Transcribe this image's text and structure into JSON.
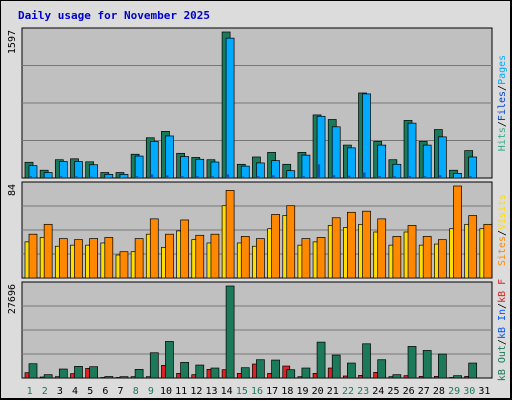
{
  "title": "Daily usage for November 2025",
  "colors": {
    "pages": "#1c7a5a",
    "files": "#00aaff",
    "hits": "#33aa88",
    "visits": "#ffdd00",
    "sites": "#ff8800",
    "kbout": "#1c7a5a",
    "kbin": "#0055ff",
    "kbf": "#dd2222",
    "weekend_day": "#1c7a5a",
    "weekday_day": "#000000"
  },
  "chart_data": [
    {
      "type": "bar",
      "panel": "hits",
      "max_label": "1597",
      "ymax": 1597,
      "axis_labels": [
        "Pages",
        "/",
        "Files",
        "/",
        "Hits"
      ],
      "categories": [
        "1",
        "2",
        "3",
        "4",
        "5",
        "6",
        "7",
        "8",
        "9",
        "10",
        "11",
        "12",
        "13",
        "14",
        "15",
        "16",
        "17",
        "18",
        "19",
        "20",
        "21",
        "22",
        "23",
        "24",
        "25",
        "26",
        "27",
        "28",
        "29",
        "30",
        "31"
      ],
      "series": [
        {
          "name": "Hits",
          "values": [
            172,
            85,
            200,
            210,
            177,
            60,
            60,
            260,
            440,
            510,
            270,
            225,
            200,
            1597,
            150,
            230,
            280,
            150,
            280,
            690,
            640,
            360,
            930,
            400,
            200,
            630,
            400,
            530,
            85,
            300,
            0
          ]
        },
        {
          "name": "Files",
          "values": [
            135,
            60,
            180,
            180,
            145,
            40,
            40,
            240,
            400,
            460,
            235,
            205,
            175,
            1530,
            130,
            165,
            190,
            80,
            250,
            675,
            560,
            330,
            920,
            360,
            150,
            600,
            360,
            450,
            50,
            230,
            0
          ]
        },
        {
          "name": "Pages",
          "values": [
            20,
            10,
            20,
            20,
            15,
            5,
            5,
            20,
            40,
            30,
            20,
            20,
            20,
            40,
            15,
            20,
            30,
            10,
            20,
            150,
            30,
            25,
            60,
            20,
            20,
            20,
            20,
            30,
            5,
            20,
            0
          ]
        }
      ]
    },
    {
      "type": "bar",
      "panel": "visits",
      "max_label": "84",
      "ymax": 84,
      "axis_labels": [
        "Visits",
        "/",
        "Sites"
      ],
      "categories": [
        "1",
        "2",
        "3",
        "4",
        "5",
        "6",
        "7",
        "8",
        "9",
        "10",
        "11",
        "12",
        "13",
        "14",
        "15",
        "16",
        "17",
        "18",
        "19",
        "20",
        "21",
        "22",
        "23",
        "24",
        "25",
        "26",
        "27",
        "28",
        "29",
        "30",
        "31"
      ],
      "series": [
        {
          "name": "Sites",
          "values": [
            40,
            49,
            36,
            35,
            36,
            37,
            24,
            36,
            54,
            40,
            53,
            39,
            40,
            80,
            38,
            36,
            58,
            66,
            36,
            37,
            55,
            60,
            61,
            54,
            38,
            48,
            38,
            35,
            84,
            57,
            49
          ]
        },
        {
          "name": "Visits",
          "values": [
            33,
            37,
            29,
            30,
            30,
            32,
            21,
            24,
            40,
            28,
            43,
            35,
            32,
            66,
            32,
            29,
            45,
            57,
            30,
            33,
            48,
            46,
            49,
            42,
            30,
            42,
            30,
            31,
            45,
            49,
            45
          ]
        }
      ]
    },
    {
      "type": "bar",
      "panel": "kbytes",
      "max_label": "27696",
      "ymax": 27696,
      "axis_labels": [
        "kB F",
        "/",
        "kB In",
        "/",
        "kB Out"
      ],
      "categories": [
        "1",
        "2",
        "3",
        "4",
        "5",
        "6",
        "7",
        "8",
        "9",
        "10",
        "11",
        "12",
        "13",
        "14",
        "15",
        "16",
        "17",
        "18",
        "19",
        "20",
        "21",
        "22",
        "23",
        "24",
        "25",
        "26",
        "27",
        "28",
        "29",
        "30",
        "31"
      ],
      "series": [
        {
          "name": "kB Out",
          "values": [
            4300,
            1000,
            2700,
            3500,
            3400,
            450,
            400,
            2600,
            7600,
            11000,
            4700,
            3900,
            3000,
            27696,
            3100,
            5500,
            5400,
            2500,
            3000,
            10800,
            6900,
            4500,
            10300,
            5500,
            1000,
            9500,
            8300,
            7200,
            700,
            4500,
            0
          ]
        },
        {
          "name": "kB In",
          "values": [
            0,
            0,
            0,
            0,
            0,
            0,
            0,
            0,
            0,
            0,
            0,
            0,
            0,
            0,
            0,
            0,
            0,
            0,
            0,
            0,
            0,
            0,
            0,
            0,
            0,
            0,
            0,
            0,
            0,
            0,
            0
          ]
        },
        {
          "name": "kB F",
          "values": [
            1600,
            300,
            400,
            1300,
            2900,
            150,
            150,
            400,
            400,
            3800,
            1400,
            1000,
            2600,
            2500,
            1400,
            4200,
            1400,
            3600,
            400,
            1400,
            3000,
            600,
            800,
            1700,
            400,
            700,
            500,
            500,
            150,
            500,
            0
          ]
        }
      ]
    }
  ],
  "day_labels": [
    "1",
    "2",
    "3",
    "4",
    "5",
    "6",
    "7",
    "8",
    "9",
    "10",
    "11",
    "12",
    "13",
    "14",
    "15",
    "16",
    "17",
    "18",
    "19",
    "20",
    "21",
    "22",
    "23",
    "24",
    "25",
    "26",
    "27",
    "28",
    "29",
    "30",
    "31"
  ],
  "weekend_days": [
    1,
    2,
    8,
    9,
    15,
    16,
    22,
    23,
    29,
    30
  ]
}
